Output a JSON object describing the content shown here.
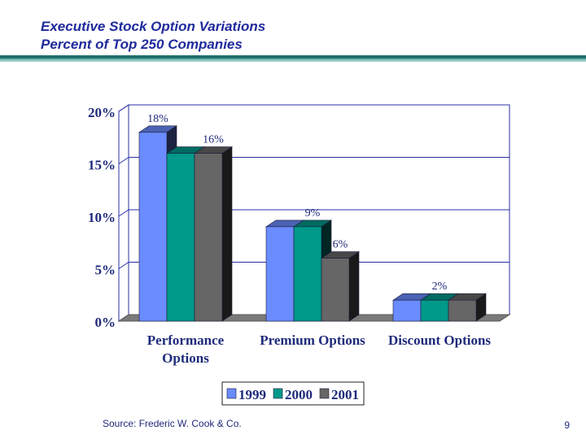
{
  "slide": {
    "title_line1": "Executive Stock Option Variations",
    "title_line2": "Percent of Top 250 Companies",
    "source": "Source:  Frederic W. Cook & Co.",
    "page_number": "9"
  },
  "colors": {
    "title": "#1f2a9c",
    "series_1999": "#6b8cff",
    "series_2000": "#00998a",
    "series_2001": "#666666",
    "text": "#1e2a7a",
    "gridline": "#2a2fa6"
  },
  "chart_data": {
    "type": "bar",
    "title": "",
    "xlabel": "",
    "ylabel": "",
    "categories": [
      [
        "Performance",
        "Options"
      ],
      [
        "Premium Options"
      ],
      [
        "Discount Options"
      ]
    ],
    "series": [
      {
        "name": "1999",
        "values": [
          18,
          9,
          2
        ]
      },
      {
        "name": "2000",
        "values": [
          16,
          9,
          2
        ]
      },
      {
        "name": "2001",
        "values": [
          16,
          6,
          2
        ]
      }
    ],
    "data_labels": [
      {
        "category": 0,
        "series": 0,
        "text": "18%"
      },
      {
        "category": 0,
        "series": 2,
        "text": "16%"
      },
      {
        "category": 1,
        "series": 1,
        "text": "9%"
      },
      {
        "category": 1,
        "series": 2,
        "text": "6%"
      },
      {
        "category": 2,
        "series": 1,
        "text": "2%"
      }
    ],
    "y_ticks": [
      "0%",
      "5%",
      "10%",
      "15%",
      "20%"
    ],
    "ylim": [
      0,
      20
    ],
    "grid": true,
    "legend_position": "bottom-center"
  }
}
